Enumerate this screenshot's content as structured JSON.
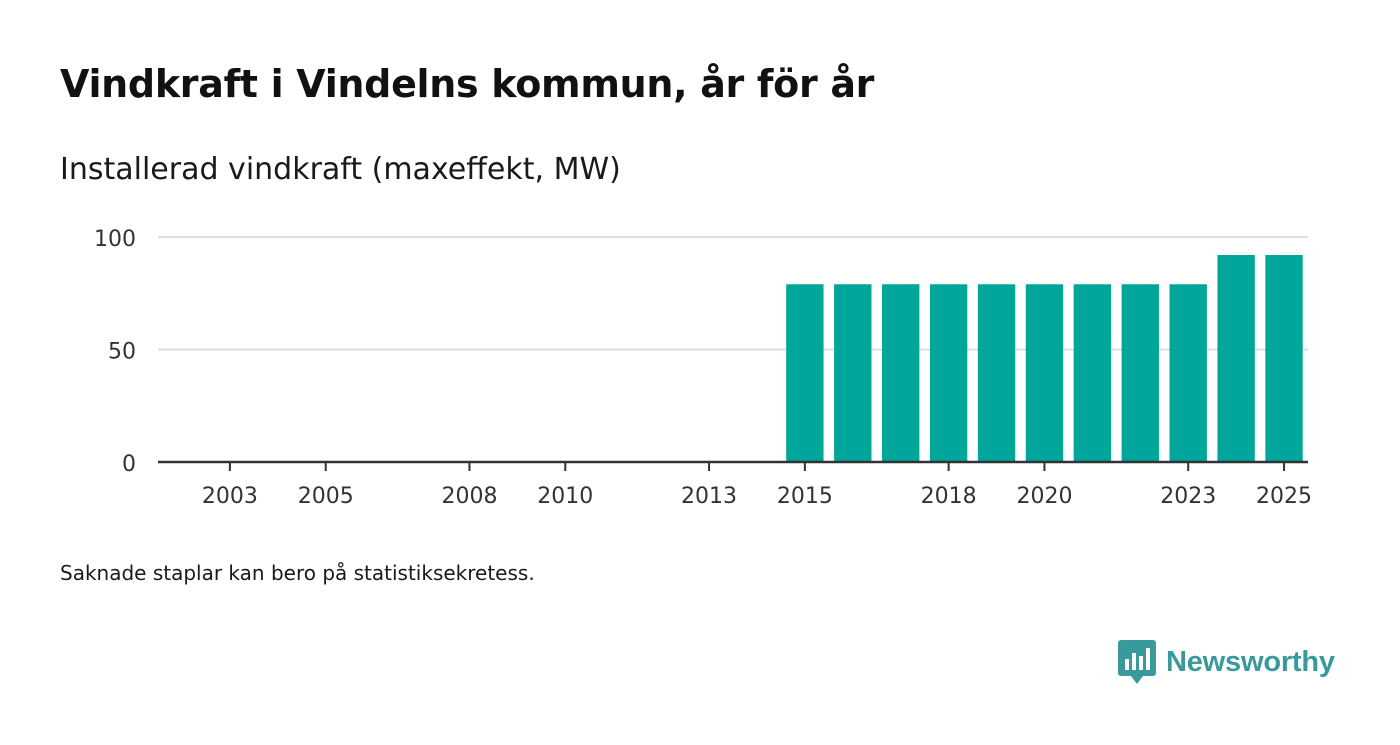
{
  "title": "Vindkraft i Vindelns kommun, år för år",
  "subtitle": "Installerad vindkraft (maxeffekt, MW)",
  "footnote": "Saknade staplar kan bero på statistiksekretess.",
  "brand": {
    "name": "Newsworthy",
    "icon": "newsworthy-logo-icon",
    "color": "#3a9a9b"
  },
  "colors": {
    "bar": "#00a69b",
    "grid": "#dddddd",
    "axis": "#333333",
    "text": "#333333"
  },
  "chart_data": {
    "type": "bar",
    "title": "Installerad vindkraft (maxeffekt, MW)",
    "xlabel": "",
    "ylabel": "",
    "categories": [
      "2002",
      "2003",
      "2004",
      "2005",
      "2006",
      "2007",
      "2008",
      "2009",
      "2010",
      "2011",
      "2012",
      "2013",
      "2014",
      "2015",
      "2016",
      "2017",
      "2018",
      "2019",
      "2020",
      "2021",
      "2022",
      "2023",
      "2024",
      "2025"
    ],
    "values": [
      null,
      null,
      null,
      null,
      null,
      null,
      null,
      null,
      null,
      null,
      null,
      null,
      null,
      79,
      79,
      79,
      79,
      79,
      79,
      79,
      79,
      79,
      92,
      92
    ],
    "x_tick_labels": [
      "2003",
      "2005",
      "2008",
      "2010",
      "2013",
      "2015",
      "2018",
      "2020",
      "2023",
      "2025"
    ],
    "y_ticks": [
      0,
      50,
      100
    ],
    "ylim": [
      0,
      100
    ],
    "grid": true,
    "legend": "none"
  }
}
